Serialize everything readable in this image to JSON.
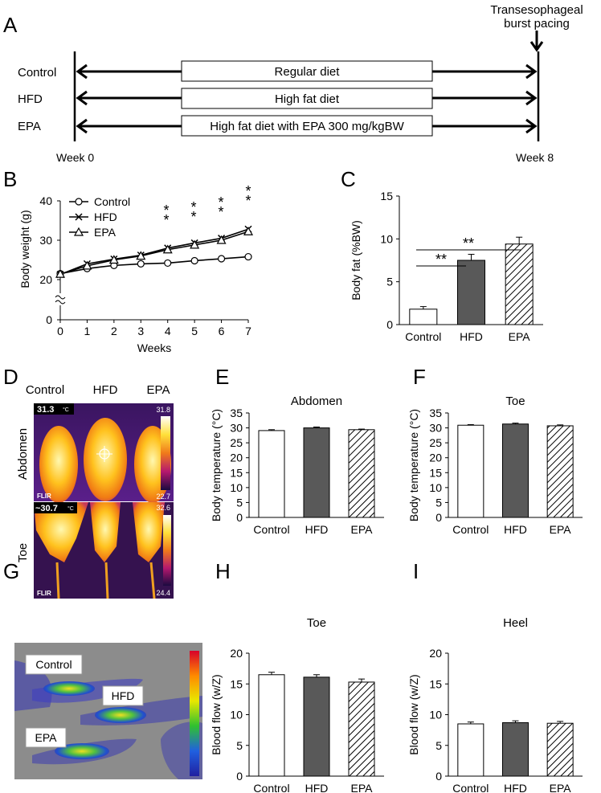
{
  "panelA": {
    "letter": "A",
    "event_label_line1": "Transesophageal",
    "event_label_line2": "burst pacing",
    "groups": [
      "Control",
      "HFD",
      "EPA"
    ],
    "diets": [
      "Regular diet",
      "High fat diet",
      "High fat diet with EPA 300 mg/kgBW"
    ],
    "start_label": "Week 0",
    "end_label": "Week 8"
  },
  "panelB": {
    "letter": "B",
    "sig_marks": [
      "*",
      "*",
      "*",
      "*",
      "*",
      "*",
      "*",
      "*"
    ]
  },
  "panelC": {
    "letter": "C",
    "sig_marks": [
      "**",
      "**"
    ]
  },
  "panelD": {
    "letter": "D",
    "column_labels": [
      "Control",
      "HFD",
      "EPA"
    ],
    "row_labels": [
      "Abdomen",
      "Toe"
    ],
    "abdomen_spot_temp": "31.3",
    "toe_spot_temp": "~30.7",
    "temp_unit": "°C",
    "abdomen_scale_max": "31.8",
    "abdomen_scale_min": "22.7",
    "toe_scale_max": "32.6",
    "toe_scale_min": "24.4",
    "flir_logo": "FLIR"
  },
  "panelE": {
    "letter": "E"
  },
  "panelF": {
    "letter": "F"
  },
  "panelG": {
    "letter": "G",
    "labels": [
      "Control",
      "HFD",
      "EPA"
    ]
  },
  "panelH": {
    "letter": "H"
  },
  "panelI": {
    "letter": "I"
  },
  "chart_data": [
    {
      "id": "B",
      "type": "line",
      "title": "",
      "xlabel": "Weeks",
      "ylabel": "Body weight (g)",
      "x": [
        0,
        1,
        2,
        3,
        4,
        5,
        6,
        7
      ],
      "xticks": [
        "0",
        "1",
        "2",
        "3",
        "4",
        "5",
        "6",
        "7"
      ],
      "yticks": [
        "0",
        "20",
        "30",
        "40"
      ],
      "ylim": [
        0,
        40
      ],
      "axis_break": true,
      "series": [
        {
          "name": "Control",
          "marker": "circle",
          "values": [
            21.5,
            22.8,
            23.6,
            24.0,
            24.2,
            24.8,
            25.3,
            25.8
          ]
        },
        {
          "name": "HFD",
          "marker": "x",
          "values": [
            21.3,
            24.0,
            25.2,
            26.2,
            28.0,
            29.3,
            30.5,
            32.8
          ]
        },
        {
          "name": "EPA",
          "marker": "triangle",
          "values": [
            21.4,
            23.5,
            25.0,
            26.0,
            27.6,
            28.8,
            30.0,
            32.2
          ]
        }
      ]
    },
    {
      "id": "C",
      "type": "bar",
      "title": "",
      "xlabel": "",
      "ylabel": "Body fat (%BW)",
      "categories": [
        "Control",
        "HFD",
        "EPA"
      ],
      "values": [
        1.8,
        7.5,
        9.4
      ],
      "errors": [
        0.3,
        0.7,
        0.8
      ],
      "yticks": [
        "0",
        "5",
        "10",
        "15"
      ],
      "ylim": [
        0,
        15
      ]
    },
    {
      "id": "E",
      "type": "bar",
      "title": "Abdomen",
      "xlabel": "",
      "ylabel": "Body temperature (°C)",
      "categories": [
        "Control",
        "HFD",
        "EPA"
      ],
      "values": [
        29.1,
        30.0,
        29.4
      ],
      "errors": [
        0.3,
        0.3,
        0.2
      ],
      "yticks": [
        "0",
        "5",
        "10",
        "15",
        "20",
        "25",
        "30",
        "35"
      ],
      "ylim": [
        0,
        35
      ]
    },
    {
      "id": "F",
      "type": "bar",
      "title": "Toe",
      "xlabel": "",
      "ylabel": "Body temperature (°C)",
      "categories": [
        "Control",
        "HFD",
        "EPA"
      ],
      "values": [
        30.9,
        31.3,
        30.7
      ],
      "errors": [
        0.2,
        0.3,
        0.3
      ],
      "yticks": [
        "0",
        "5",
        "10",
        "15",
        "20",
        "25",
        "30",
        "35"
      ],
      "ylim": [
        0,
        35
      ]
    },
    {
      "id": "H",
      "type": "bar",
      "title": "Toe",
      "xlabel": "",
      "ylabel": "Blood flow (w/Z)",
      "categories": [
        "Control",
        "HFD",
        "EPA"
      ],
      "values": [
        16.5,
        16.1,
        15.3
      ],
      "errors": [
        0.4,
        0.4,
        0.5
      ],
      "yticks": [
        "0",
        "5",
        "10",
        "15",
        "20"
      ],
      "ylim": [
        0,
        20
      ]
    },
    {
      "id": "I",
      "type": "bar",
      "title": "Heel",
      "xlabel": "",
      "ylabel": "Blood flow (w/Z)",
      "categories": [
        "Control",
        "HFD",
        "EPA"
      ],
      "values": [
        8.5,
        8.7,
        8.6
      ],
      "errors": [
        0.3,
        0.3,
        0.3
      ],
      "yticks": [
        "0",
        "5",
        "10",
        "15",
        "20"
      ],
      "ylim": [
        0,
        20
      ]
    }
  ]
}
